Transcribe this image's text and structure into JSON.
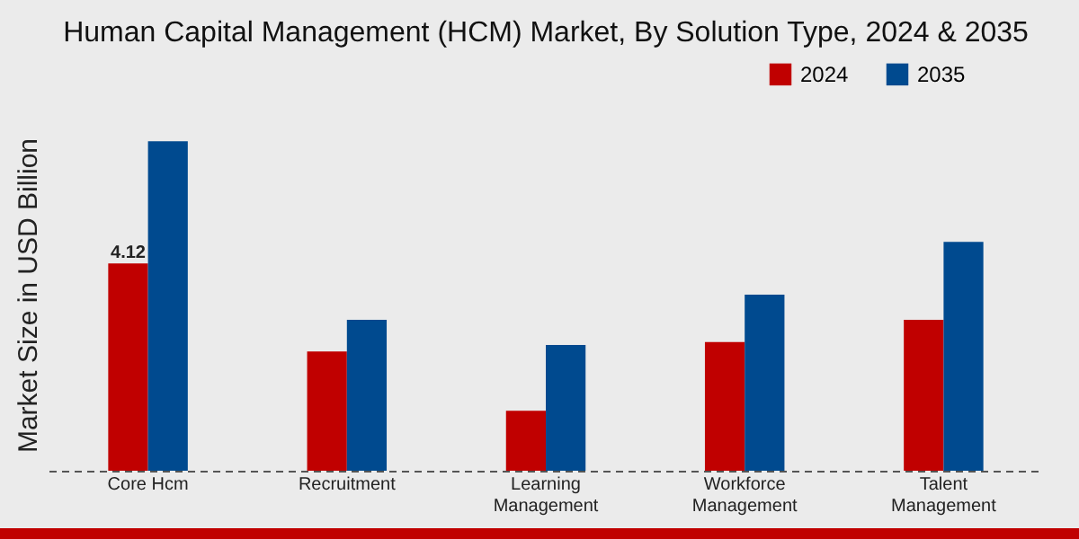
{
  "chart_data": {
    "type": "bar",
    "title": "Human Capital Management (HCM) Market, By Solution Type, 2024 & 2035",
    "ylabel": "Market Size in USD Billion",
    "categories": [
      "Core Hcm",
      "Recruitment",
      "Learning Management",
      "Workforce Management",
      "Talent Management"
    ],
    "series": [
      {
        "name": "2024",
        "color": "#c00000",
        "values": [
          4.12,
          2.37,
          1.19,
          2.56,
          3.0
        ],
        "value_labels": [
          "4.12",
          null,
          null,
          null,
          null
        ]
      },
      {
        "name": "2035",
        "color": "#004a8f",
        "values": [
          6.55,
          3.0,
          2.5,
          3.5,
          4.55
        ]
      }
    ],
    "legend": "top right",
    "grid": false
  }
}
